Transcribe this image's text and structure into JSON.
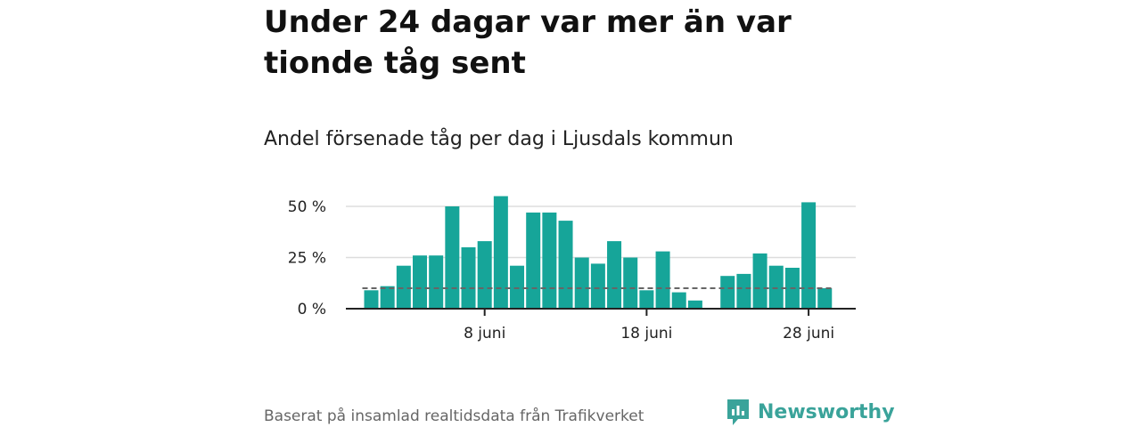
{
  "headline": "Under 24 dagar var mer än var tionde tåg sent",
  "subtitle": "Andel försenade tåg per dag i Ljusdals kommun",
  "source": "Baserat på insamlad realtidsdata från Trafikverket",
  "brand": "Newsworthy",
  "colors": {
    "bar": "#16a599",
    "reference_line": "#666666",
    "grid": "#dddddd",
    "axis": "#222222",
    "brand": "#3aa39a"
  },
  "chart_data": {
    "type": "bar",
    "x_unit": "juni",
    "days": [
      1,
      2,
      3,
      4,
      5,
      6,
      7,
      8,
      9,
      10,
      11,
      12,
      13,
      14,
      15,
      16,
      17,
      18,
      19,
      20,
      21,
      22,
      23,
      24,
      25,
      26,
      27,
      28,
      29
    ],
    "values": [
      9,
      11,
      21,
      26,
      26,
      50,
      30,
      33,
      55,
      21,
      47,
      47,
      43,
      25,
      22,
      33,
      25,
      9,
      28,
      8,
      4,
      0,
      16,
      17,
      27,
      21,
      20,
      52,
      10
    ],
    "reference_value": 10,
    "ylim": [
      0,
      60
    ],
    "yticks": [
      0,
      25,
      50
    ],
    "ytick_labels": [
      "0 %",
      "25 %",
      "50 %"
    ],
    "xticks": [
      8,
      18,
      28
    ],
    "xtick_labels": [
      "8 juni",
      "18 juni",
      "28 juni"
    ],
    "grid": true,
    "legend": "none"
  }
}
